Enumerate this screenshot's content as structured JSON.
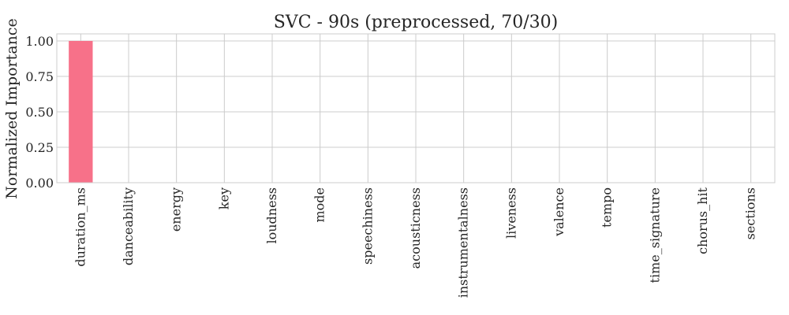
{
  "chart_data": {
    "type": "bar",
    "title": "SVC - 90s (preprocessed, 70/30)",
    "xlabel": "",
    "ylabel": "Normalized Importance",
    "categories": [
      "duration_ms",
      "danceability",
      "energy",
      "key",
      "loudness",
      "mode",
      "speechiness",
      "acousticness",
      "instrumentalness",
      "liveness",
      "valence",
      "tempo",
      "time_signature",
      "chorus_hit",
      "sections"
    ],
    "values": [
      1.0,
      0,
      0,
      0,
      0,
      0,
      0,
      0,
      0,
      0,
      0,
      0,
      0,
      0,
      0
    ],
    "ylim": [
      0,
      1.05
    ],
    "yticks": [
      "0.00",
      "0.25",
      "0.50",
      "0.75",
      "1.00"
    ],
    "grid": true,
    "bar_color": "#f77189"
  }
}
